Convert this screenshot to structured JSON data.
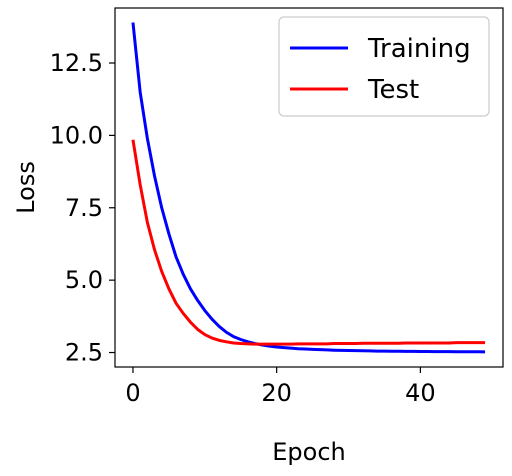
{
  "chart_data": {
    "type": "line",
    "title": "",
    "xlabel": "Epoch",
    "ylabel": "Loss",
    "xlim": [
      -2.5,
      51.5
    ],
    "ylim": [
      2.0,
      14.4
    ],
    "xticks": [
      0,
      20,
      40
    ],
    "xtick_labels": [
      "0",
      "20",
      "40"
    ],
    "yticks": [
      2.5,
      5.0,
      7.5,
      10.0,
      12.5
    ],
    "ytick_labels": [
      "2.5",
      "5.0",
      "7.5",
      "10.0",
      "12.5"
    ],
    "grid": false,
    "legend_position": "top-right",
    "series": [
      {
        "name": "Training",
        "color": "#0000ff",
        "x": [
          0,
          1,
          2,
          3,
          4,
          5,
          6,
          7,
          8,
          9,
          10,
          11,
          12,
          13,
          14,
          15,
          16,
          17,
          18,
          19,
          20,
          21,
          22,
          23,
          24,
          25,
          26,
          27,
          28,
          29,
          30,
          31,
          32,
          33,
          34,
          35,
          36,
          37,
          38,
          39,
          40,
          41,
          42,
          43,
          44,
          45,
          46,
          47,
          48,
          49
        ],
        "values": [
          13.9,
          11.5,
          9.9,
          8.6,
          7.5,
          6.6,
          5.8,
          5.2,
          4.7,
          4.3,
          3.95,
          3.65,
          3.4,
          3.2,
          3.05,
          2.95,
          2.87,
          2.81,
          2.76,
          2.72,
          2.69,
          2.67,
          2.65,
          2.63,
          2.62,
          2.61,
          2.6,
          2.59,
          2.58,
          2.575,
          2.57,
          2.565,
          2.56,
          2.555,
          2.55,
          2.547,
          2.545,
          2.542,
          2.54,
          2.538,
          2.536,
          2.534,
          2.532,
          2.53,
          2.529,
          2.528,
          2.527,
          2.526,
          2.525,
          2.524
        ]
      },
      {
        "name": "Test",
        "color": "#ff0000",
        "x": [
          0,
          1,
          2,
          3,
          4,
          5,
          6,
          7,
          8,
          9,
          10,
          11,
          12,
          13,
          14,
          15,
          16,
          17,
          18,
          19,
          20,
          21,
          22,
          23,
          24,
          25,
          26,
          27,
          28,
          29,
          30,
          31,
          32,
          33,
          34,
          35,
          36,
          37,
          38,
          39,
          40,
          41,
          42,
          43,
          44,
          45,
          46,
          47,
          48,
          49
        ],
        "values": [
          9.85,
          8.3,
          7.0,
          6.05,
          5.3,
          4.7,
          4.2,
          3.85,
          3.55,
          3.3,
          3.12,
          3.0,
          2.92,
          2.87,
          2.83,
          2.81,
          2.8,
          2.79,
          2.79,
          2.79,
          2.79,
          2.79,
          2.79,
          2.8,
          2.8,
          2.8,
          2.8,
          2.8,
          2.81,
          2.81,
          2.81,
          2.81,
          2.82,
          2.82,
          2.82,
          2.82,
          2.82,
          2.82,
          2.83,
          2.83,
          2.83,
          2.83,
          2.83,
          2.83,
          2.83,
          2.84,
          2.84,
          2.84,
          2.84,
          2.84
        ]
      }
    ]
  }
}
